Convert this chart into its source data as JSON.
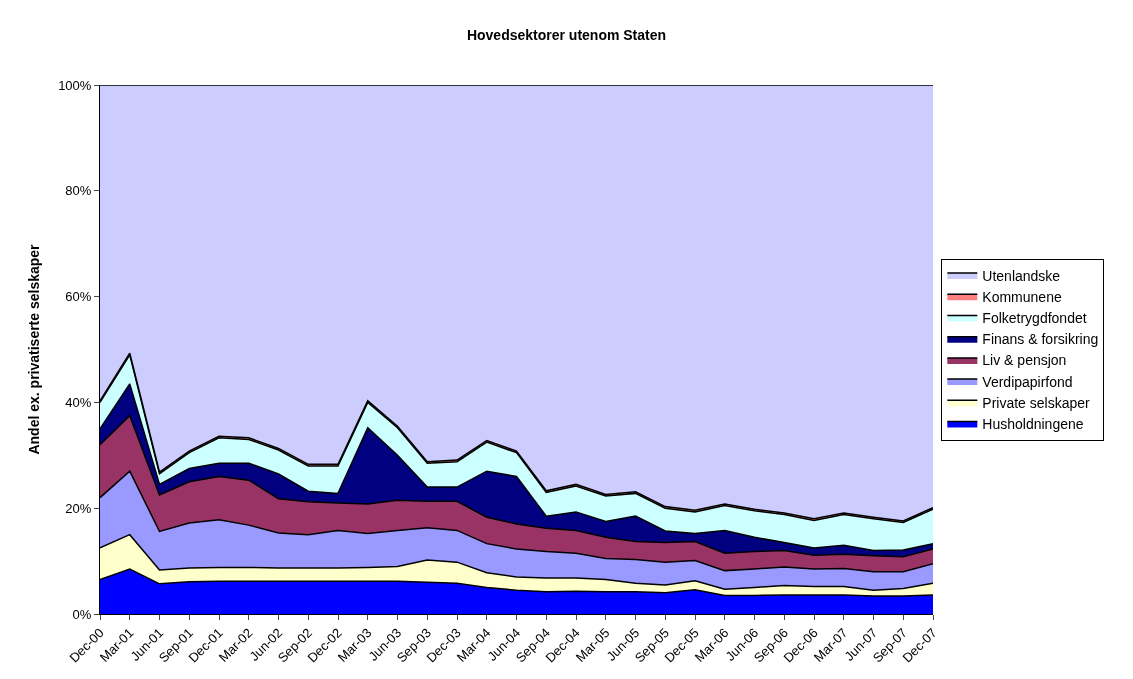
{
  "chart_data": {
    "type": "area",
    "stacked": true,
    "title": "Hovedsektorer utenom Staten",
    "ylabel": "Andel ex. privatiserte selskaper",
    "categories": [
      "Dec-00",
      "Mar-01",
      "Jun-01",
      "Sep-01",
      "Dec-01",
      "Mar-02",
      "Jun-02",
      "Sep-02",
      "Dec-02",
      "Mar-03",
      "Jun-03",
      "Sep-03",
      "Dec-03",
      "Mar-04",
      "Jun-04",
      "Sep-04",
      "Dec-04",
      "Mar-05",
      "Jun-05",
      "Sep-05",
      "Dec-05",
      "Mar-06",
      "Jun-06",
      "Sep-06",
      "Dec-06",
      "Mar-07",
      "Jun-07",
      "Sep-07",
      "Dec-07"
    ],
    "ylim": [
      0,
      100
    ],
    "yticks": [
      {
        "value": 0,
        "label": "0%"
      },
      {
        "value": 20,
        "label": "20%"
      },
      {
        "value": 40,
        "label": "40%"
      },
      {
        "value": 60,
        "label": "60%"
      },
      {
        "value": 80,
        "label": "80%"
      },
      {
        "value": 100,
        "label": "100%"
      }
    ],
    "legend": "right",
    "series": [
      {
        "name": "Husholdningene",
        "color": "#0000ff",
        "values": [
          6.5,
          8.5,
          5.7,
          6.1,
          6.2,
          6.2,
          6.2,
          6.2,
          6.2,
          6.2,
          6.2,
          6.0,
          5.8,
          5.0,
          4.5,
          4.2,
          4.3,
          4.2,
          4.2,
          4.0,
          4.6,
          3.5,
          3.5,
          3.6,
          3.6,
          3.6,
          3.4,
          3.4,
          3.6
        ]
      },
      {
        "name": "Private selskaper",
        "color": "#ffffcc",
        "values": [
          6.0,
          6.5,
          2.6,
          2.6,
          2.6,
          2.6,
          2.5,
          2.5,
          2.5,
          2.6,
          2.8,
          4.2,
          4.0,
          2.8,
          2.5,
          2.6,
          2.5,
          2.3,
          1.6,
          1.5,
          1.7,
          1.2,
          1.5,
          1.8,
          1.6,
          1.6,
          1.1,
          1.4,
          2.2
        ]
      },
      {
        "name": "Verdipapirfond",
        "color": "#9999ff",
        "values": [
          9.5,
          12.0,
          7.3,
          8.5,
          9.0,
          8.0,
          6.6,
          6.3,
          7.1,
          6.4,
          6.8,
          6.1,
          6.0,
          5.5,
          5.3,
          5.0,
          4.7,
          4.0,
          4.5,
          4.3,
          3.8,
          3.5,
          3.5,
          3.5,
          3.3,
          3.4,
          3.5,
          3.2,
          3.7
        ]
      },
      {
        "name": "Liv & pensjon",
        "color": "#993366",
        "values": [
          10.0,
          10.5,
          6.9,
          7.8,
          8.2,
          8.5,
          6.5,
          6.2,
          5.2,
          5.6,
          5.7,
          5.0,
          5.5,
          5.0,
          4.7,
          4.4,
          4.3,
          4.0,
          3.4,
          3.7,
          3.6,
          3.3,
          3.3,
          3.1,
          2.6,
          2.7,
          3.0,
          2.8,
          2.8
        ]
      },
      {
        "name": "Finans & forsikring",
        "color": "#000080",
        "values": [
          3.0,
          6.0,
          2.0,
          2.5,
          2.5,
          3.2,
          4.7,
          2.0,
          1.8,
          14.4,
          8.5,
          2.7,
          2.7,
          8.7,
          9.0,
          2.3,
          3.5,
          3.0,
          4.8,
          2.2,
          1.5,
          4.3,
          2.7,
          1.5,
          1.4,
          1.7,
          1.0,
          1.3,
          1.0
        ]
      },
      {
        "name": "Folketrygdfondet",
        "color": "#ccffff",
        "values": [
          5.0,
          5.5,
          2.0,
          3.0,
          4.8,
          4.5,
          4.5,
          4.8,
          5.2,
          4.8,
          5.2,
          4.5,
          4.8,
          5.5,
          4.5,
          4.5,
          4.9,
          4.8,
          4.3,
          4.3,
          4.1,
          4.7,
          5.0,
          5.3,
          5.2,
          5.8,
          6.0,
          5.2,
          6.5
        ]
      },
      {
        "name": "Kommunene",
        "color": "#ff8080",
        "values": [
          0.3,
          0.3,
          0.3,
          0.3,
          0.3,
          0.3,
          0.3,
          0.3,
          0.3,
          0.3,
          0.3,
          0.3,
          0.3,
          0.3,
          0.3,
          0.3,
          0.3,
          0.3,
          0.3,
          0.3,
          0.3,
          0.3,
          0.3,
          0.3,
          0.3,
          0.3,
          0.3,
          0.3,
          0.3
        ]
      },
      {
        "name": "Utenlandske",
        "color": "#ccccff",
        "values": [
          59.7,
          50.7,
          73.2,
          69.2,
          66.4,
          66.7,
          68.7,
          71.7,
          71.7,
          59.7,
          64.5,
          71.2,
          70.9,
          67.2,
          69.2,
          76.7,
          75.5,
          77.4,
          76.9,
          79.7,
          80.4,
          79.2,
          80.2,
          80.9,
          82.0,
          80.9,
          81.7,
          82.4,
          79.9
        ]
      }
    ]
  }
}
